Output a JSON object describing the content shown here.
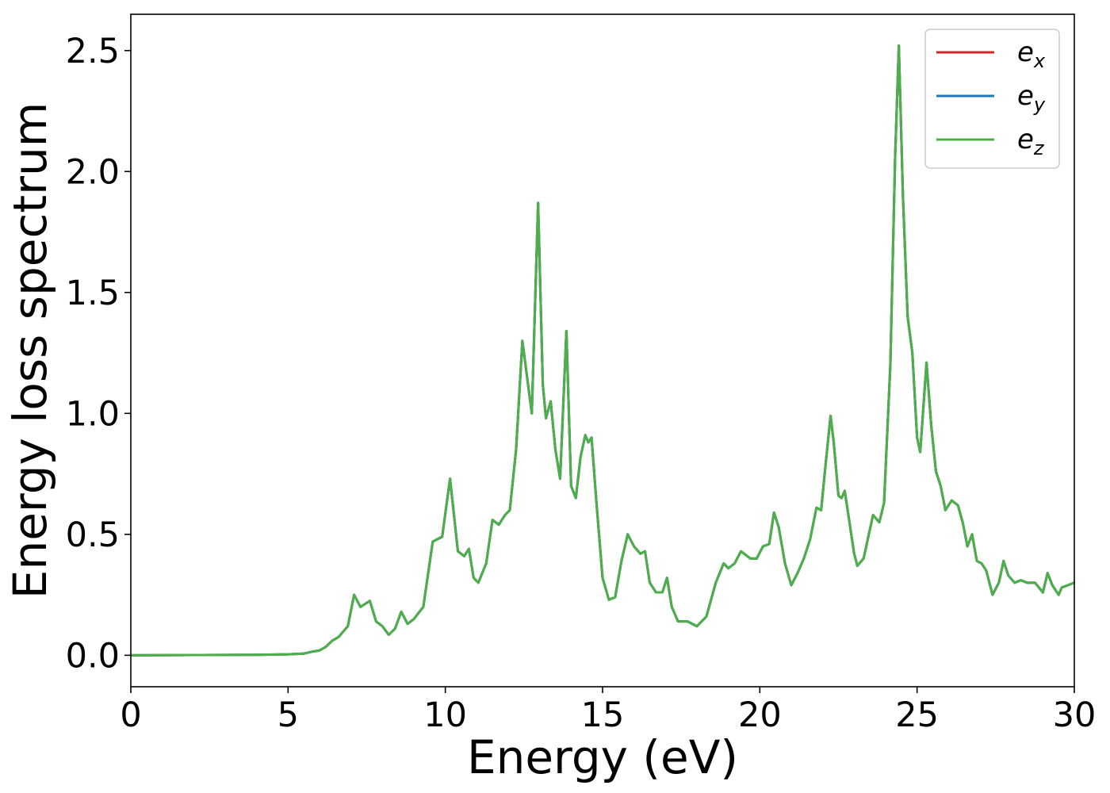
{
  "chart_data": {
    "type": "line",
    "title": "",
    "xlabel": "Energy (eV)",
    "ylabel": "Energy loss spectrum",
    "xlim": [
      0,
      30
    ],
    "ylim": [
      -0.13,
      2.65
    ],
    "xticks": [
      0,
      5,
      10,
      15,
      20,
      25,
      30
    ],
    "xtick_labels": [
      "0",
      "5",
      "10",
      "15",
      "20",
      "25",
      "30"
    ],
    "yticks": [
      0.0,
      0.5,
      1.0,
      1.5,
      2.0,
      2.5
    ],
    "ytick_labels": [
      "0.0",
      "0.5",
      "1.0",
      "1.5",
      "2.0",
      "2.5"
    ],
    "grid": false,
    "legend_placement": "top-right",
    "series": [
      {
        "name": "e_x",
        "label_base": "e",
        "label_sub": "x",
        "color": "#d62728"
      },
      {
        "name": "e_y",
        "label_base": "e",
        "label_sub": "y",
        "color": "#1f77b4"
      },
      {
        "name": "e_z",
        "label_base": "e",
        "label_sub": "z",
        "color": "#4daf4a"
      }
    ],
    "x": [
      0,
      2,
      4,
      5,
      5.5,
      5.8,
      6.0,
      6.2,
      6.4,
      6.6,
      6.9,
      7.1,
      7.3,
      7.6,
      7.8,
      8.0,
      8.2,
      8.4,
      8.6,
      8.8,
      9.0,
      9.3,
      9.6,
      9.9,
      10.15,
      10.4,
      10.6,
      10.75,
      10.9,
      11.05,
      11.3,
      11.5,
      11.7,
      11.9,
      12.05,
      12.25,
      12.45,
      12.6,
      12.75,
      12.95,
      13.1,
      13.2,
      13.35,
      13.5,
      13.65,
      13.85,
      14.0,
      14.15,
      14.3,
      14.45,
      14.55,
      14.65,
      14.8,
      15.0,
      15.2,
      15.4,
      15.6,
      15.8,
      16.0,
      16.2,
      16.35,
      16.5,
      16.7,
      16.9,
      17.05,
      17.2,
      17.4,
      17.7,
      18.0,
      18.3,
      18.6,
      18.85,
      19.0,
      19.2,
      19.4,
      19.7,
      19.9,
      20.1,
      20.3,
      20.45,
      20.6,
      20.8,
      21.0,
      21.2,
      21.4,
      21.6,
      21.8,
      21.95,
      22.1,
      22.25,
      22.35,
      22.5,
      22.6,
      22.7,
      22.85,
      23.0,
      23.1,
      23.3,
      23.6,
      23.8,
      23.95,
      24.15,
      24.3,
      24.42,
      24.55,
      24.7,
      24.85,
      25.0,
      25.1,
      25.3,
      25.45,
      25.6,
      25.75,
      25.9,
      26.1,
      26.3,
      26.45,
      26.6,
      26.75,
      26.9,
      27.05,
      27.2,
      27.4,
      27.6,
      27.75,
      27.9,
      28.1,
      28.3,
      28.5,
      28.75,
      29.0,
      29.15,
      29.3,
      29.5,
      29.6,
      29.8,
      30.0
    ],
    "y": [
      0.0,
      0.001,
      0.002,
      0.004,
      0.007,
      0.016,
      0.02,
      0.035,
      0.06,
      0.075,
      0.12,
      0.25,
      0.2,
      0.225,
      0.14,
      0.12,
      0.085,
      0.11,
      0.18,
      0.13,
      0.15,
      0.2,
      0.47,
      0.49,
      0.73,
      0.43,
      0.41,
      0.44,
      0.32,
      0.3,
      0.38,
      0.56,
      0.54,
      0.58,
      0.6,
      0.85,
      1.3,
      1.15,
      1.0,
      1.87,
      1.12,
      0.98,
      1.05,
      0.85,
      0.73,
      1.34,
      0.7,
      0.65,
      0.82,
      0.91,
      0.88,
      0.9,
      0.64,
      0.32,
      0.23,
      0.24,
      0.39,
      0.5,
      0.45,
      0.42,
      0.43,
      0.3,
      0.26,
      0.26,
      0.32,
      0.2,
      0.14,
      0.14,
      0.12,
      0.16,
      0.3,
      0.38,
      0.36,
      0.38,
      0.43,
      0.4,
      0.4,
      0.45,
      0.46,
      0.59,
      0.53,
      0.38,
      0.29,
      0.34,
      0.4,
      0.48,
      0.61,
      0.6,
      0.8,
      0.99,
      0.88,
      0.66,
      0.65,
      0.68,
      0.55,
      0.42,
      0.37,
      0.4,
      0.58,
      0.55,
      0.63,
      1.2,
      2.05,
      2.52,
      1.9,
      1.4,
      1.25,
      0.9,
      0.84,
      1.21,
      0.95,
      0.76,
      0.7,
      0.6,
      0.64,
      0.62,
      0.55,
      0.45,
      0.5,
      0.39,
      0.38,
      0.35,
      0.25,
      0.3,
      0.39,
      0.33,
      0.3,
      0.31,
      0.3,
      0.3,
      0.26,
      0.34,
      0.29,
      0.25,
      0.28,
      0.29,
      0.3
    ]
  }
}
